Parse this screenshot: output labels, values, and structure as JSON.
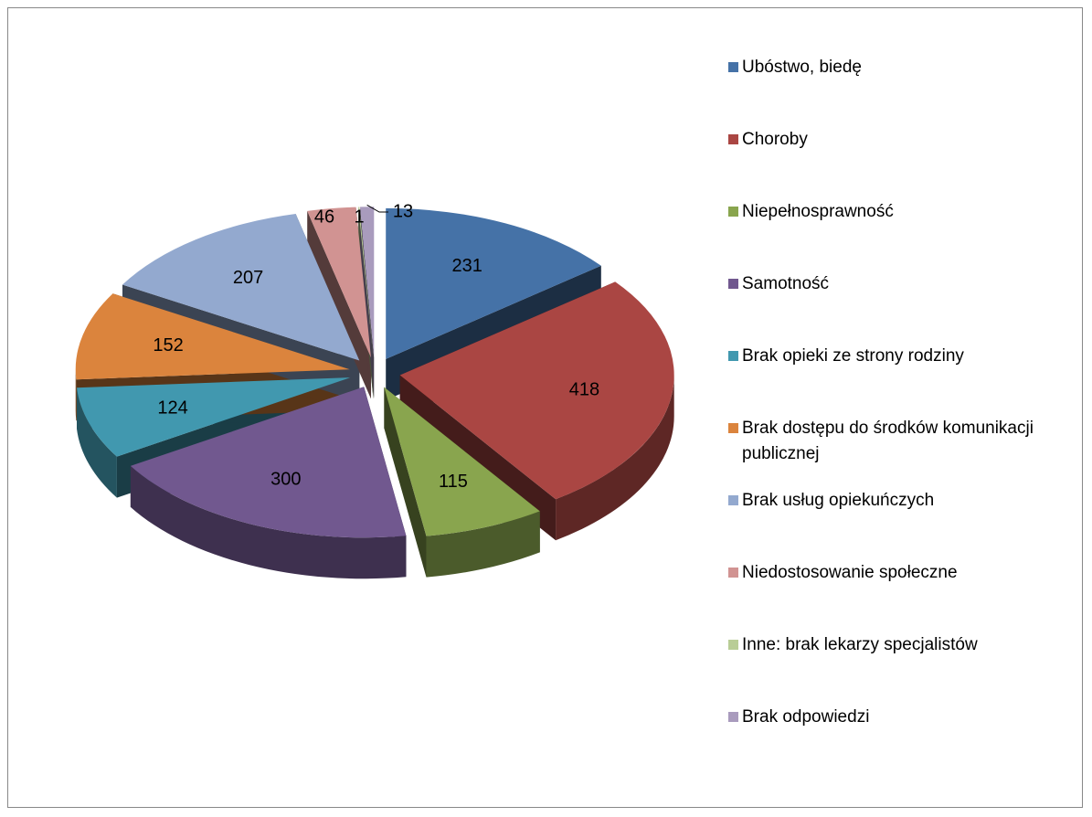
{
  "chart_data": {
    "type": "pie",
    "categories": [
      "Ubóstwo, biedę",
      "Choroby",
      "Niepełnosprawność",
      "Samotność",
      "Brak opieki ze strony rodziny",
      "Brak dostępu do środków komunikacji publicznej",
      "Brak usług opiekuńczych",
      "Niedostosowanie społeczne",
      "Inne: brak lekarzy specjalistów",
      "Brak odpowiedzi"
    ],
    "values": [
      231,
      418,
      115,
      300,
      124,
      152,
      207,
      46,
      1,
      13
    ],
    "colors": [
      "#4572a7",
      "#aa4643",
      "#89a54e",
      "#71588f",
      "#4198af",
      "#db843d",
      "#93a9cf",
      "#d19392",
      "#b9cd96",
      "#a99bbd"
    ],
    "legend": "right"
  }
}
